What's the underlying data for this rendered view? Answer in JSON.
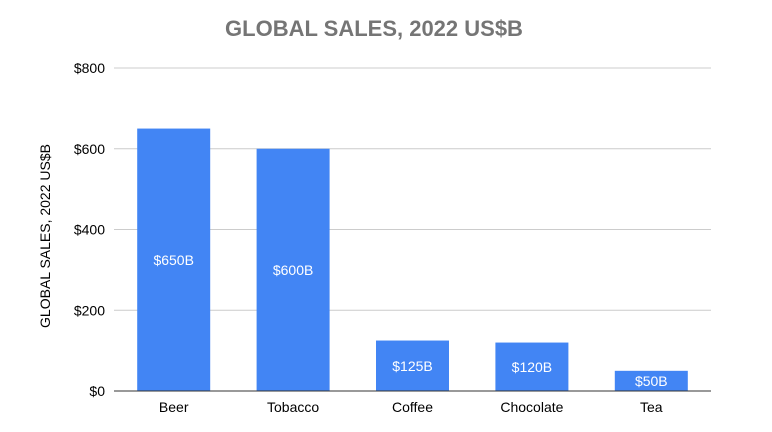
{
  "chart_data": {
    "type": "bar",
    "title": "GLOBAL SALES, 2022 US$B",
    "xlabel": "",
    "ylabel": "GLOBAL SALES, 2022 US$B",
    "categories": [
      "Beer",
      "Tobacco",
      "Coffee",
      "Chocolate",
      "Tea"
    ],
    "values": [
      650,
      600,
      125,
      120,
      50
    ],
    "data_labels": [
      "$650B",
      "$600B",
      "$125B",
      "$120B",
      "$50B"
    ],
    "ylim": [
      0,
      800
    ],
    "yticks": [
      0,
      200,
      400,
      600,
      800
    ],
    "ytick_labels": [
      "$0",
      "$200",
      "$400",
      "$600",
      "$800"
    ],
    "grid": true,
    "legend": "none",
    "colors": {
      "bar": "#4285f4",
      "title": "#757575",
      "grid": "#cccccc",
      "data_label": "#ffffff"
    }
  }
}
